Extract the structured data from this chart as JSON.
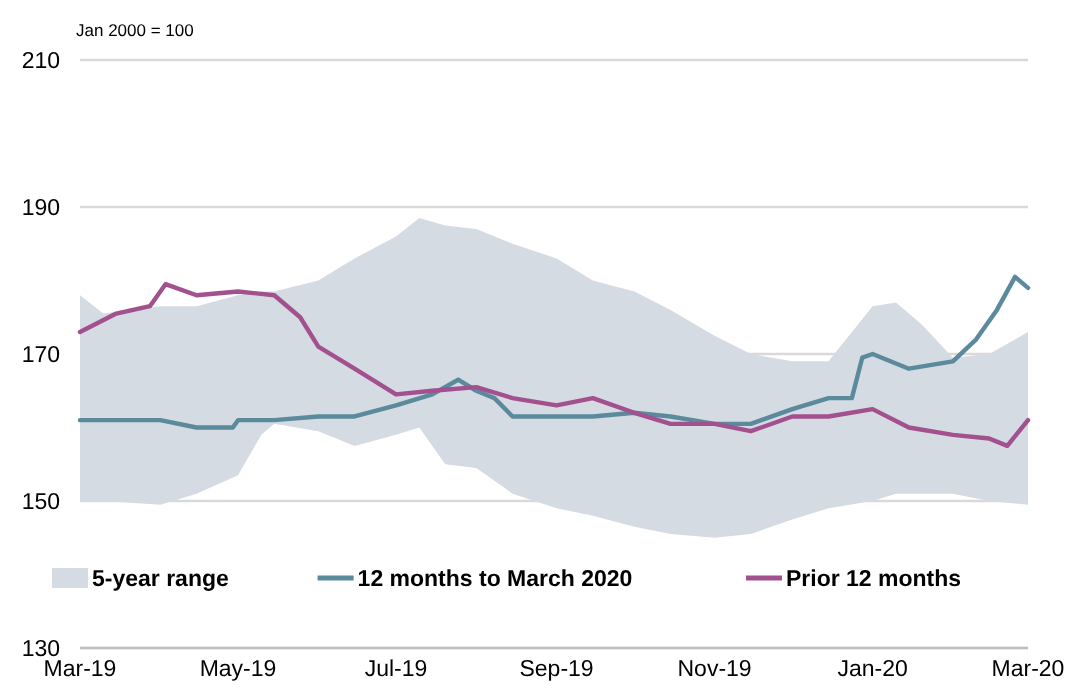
{
  "chart_data": {
    "type": "line",
    "ylabel": "Jan 2000 = 100",
    "xlim": [
      "2019-03-01",
      "2020-03-01"
    ],
    "xticks": [
      {
        "value": "2019-03-01",
        "label": "Mar-19"
      },
      {
        "value": "2019-05-01",
        "label": "May-19"
      },
      {
        "value": "2019-07-01",
        "label": "Jul-19"
      },
      {
        "value": "2019-09-01",
        "label": "Sep-19"
      },
      {
        "value": "2019-11-01",
        "label": "Nov-19"
      },
      {
        "value": "2020-01-01",
        "label": "Jan-20"
      },
      {
        "value": "2020-03-01",
        "label": "Mar-20"
      }
    ],
    "ylim": [
      130,
      210
    ],
    "yticks": [
      130,
      150,
      170,
      190,
      210
    ],
    "grid": "y",
    "legend": "bottom",
    "series": [
      {
        "name": "5-year range",
        "type": "area",
        "color": "#d5dbe3",
        "x": [
          "2019-03-01",
          "2019-03-10",
          "2019-04-01",
          "2019-04-15",
          "2019-05-01",
          "2019-05-10",
          "2019-05-15",
          "2019-06-01",
          "2019-06-15",
          "2019-07-01",
          "2019-07-10",
          "2019-07-20",
          "2019-08-01",
          "2019-08-15",
          "2019-09-01",
          "2019-09-15",
          "2019-10-01",
          "2019-10-15",
          "2019-11-01",
          "2019-11-15",
          "2019-12-01",
          "2019-12-15",
          "2020-01-01",
          "2020-01-10",
          "2020-01-20",
          "2020-02-01",
          "2020-02-15",
          "2020-03-01"
        ],
        "values": [
          null,
          null,
          null,
          null,
          null,
          null,
          null,
          null,
          null,
          null,
          null,
          null,
          null,
          null,
          null,
          null,
          null,
          null,
          null,
          null,
          null,
          null,
          null,
          null,
          null,
          null,
          null,
          null
        ],
        "upper": [
          178,
          175.5,
          176.5,
          176.5,
          178,
          178.5,
          178.5,
          180,
          183,
          186,
          188.5,
          187.5,
          187,
          185,
          183,
          180,
          178.5,
          176,
          172.5,
          170,
          169,
          169,
          176.5,
          177,
          174,
          169.5,
          170,
          173
        ],
        "lower": [
          150,
          150,
          149.5,
          151,
          153.5,
          159,
          160.5,
          159.5,
          157.5,
          159,
          160,
          155,
          154.5,
          151,
          149,
          148,
          146.5,
          145.5,
          145,
          145.5,
          147.5,
          149,
          150,
          151,
          151,
          151,
          150,
          149.5
        ]
      },
      {
        "name": "12 months to March 2020",
        "type": "line",
        "color": "#5a8a9c",
        "x": [
          "2019-03-01",
          "2019-03-15",
          "2019-04-01",
          "2019-04-15",
          "2019-04-29",
          "2019-05-01",
          "2019-05-15",
          "2019-06-01",
          "2019-06-15",
          "2019-07-01",
          "2019-07-15",
          "2019-07-25",
          "2019-08-01",
          "2019-08-08",
          "2019-08-15",
          "2019-09-01",
          "2019-09-15",
          "2019-10-01",
          "2019-10-15",
          "2019-11-01",
          "2019-11-15",
          "2019-12-01",
          "2019-12-15",
          "2019-12-24",
          "2019-12-28",
          "2020-01-01",
          "2020-01-15",
          "2020-02-01",
          "2020-02-10",
          "2020-02-18",
          "2020-02-25",
          "2020-03-01"
        ],
        "values": [
          161,
          161,
          161,
          160,
          160,
          161,
          161,
          161.5,
          161.5,
          163,
          164.5,
          166.5,
          165,
          164,
          161.5,
          161.5,
          161.5,
          162,
          161.5,
          160.5,
          160.5,
          162.5,
          164,
          164,
          169.5,
          170,
          168,
          169,
          172,
          176,
          180.5,
          179
        ]
      },
      {
        "name": "Prior 12 months",
        "type": "line",
        "color": "#a2508e",
        "x": [
          "2019-03-01",
          "2019-03-15",
          "2019-03-28",
          "2019-04-03",
          "2019-04-15",
          "2019-05-01",
          "2019-05-15",
          "2019-05-25",
          "2019-06-01",
          "2019-06-15",
          "2019-07-01",
          "2019-07-15",
          "2019-08-01",
          "2019-08-15",
          "2019-09-01",
          "2019-09-15",
          "2019-10-01",
          "2019-10-15",
          "2019-11-01",
          "2019-11-15",
          "2019-12-01",
          "2019-12-15",
          "2020-01-01",
          "2020-01-15",
          "2020-02-01",
          "2020-02-15",
          "2020-02-22",
          "2020-03-01"
        ],
        "values": [
          173,
          175.5,
          176.5,
          179.5,
          178,
          178.5,
          178,
          175,
          171,
          168,
          164.5,
          165,
          165.5,
          164,
          163,
          164,
          162,
          160.5,
          160.5,
          159.5,
          161.5,
          161.5,
          162.5,
          160,
          159,
          158.5,
          157.5,
          161
        ]
      }
    ]
  }
}
